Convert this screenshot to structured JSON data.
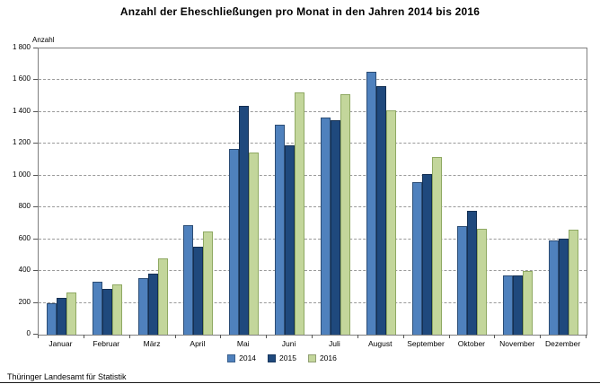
{
  "chart_data": {
    "type": "bar",
    "title": "Anzahl der Eheschließungen pro Monat in den Jahren 2014 bis 2016",
    "ylabel": "Anzahl",
    "xlabel": "",
    "ylim": [
      0,
      1800
    ],
    "grid": "horizontal-dashed",
    "legend_position": "bottom-center",
    "categories": [
      "Januar",
      "Februar",
      "März",
      "April",
      "Mai",
      "Juni",
      "Juli",
      "August",
      "September",
      "Oktober",
      "November",
      "Dezember"
    ],
    "yticks": [
      {
        "v": 0,
        "label": "0"
      },
      {
        "v": 200,
        "label": "200"
      },
      {
        "v": 400,
        "label": "400"
      },
      {
        "v": 600,
        "label": "600"
      },
      {
        "v": 800,
        "label": "800"
      },
      {
        "v": 1000,
        "label": "1 000"
      },
      {
        "v": 1200,
        "label": "1 200"
      },
      {
        "v": 1400,
        "label": "1 400"
      },
      {
        "v": 1600,
        "label": "1 600"
      },
      {
        "v": 1800,
        "label": "1 800"
      }
    ],
    "series": [
      {
        "name": "2014",
        "fill": "#4F81BD",
        "border": "#2C4D75",
        "values": [
          200,
          335,
          355,
          690,
          1170,
          1320,
          1365,
          1655,
          960,
          685,
          375,
          590
        ]
      },
      {
        "name": "2015",
        "fill": "#1F497D",
        "border": "#142F52",
        "values": [
          230,
          290,
          385,
          555,
          1440,
          1190,
          1350,
          1565,
          1010,
          780,
          375,
          605
        ]
      },
      {
        "name": "2016",
        "fill": "#C3D69B",
        "border": "#8FA963",
        "values": [
          265,
          315,
          480,
          650,
          1145,
          1525,
          1515,
          1410,
          1120,
          665,
          400,
          660
        ]
      }
    ]
  },
  "footer": {
    "source": "Thüringer Landesamt für Statistik"
  },
  "colors": {
    "frame": "#7f7f7f",
    "gridline": "#9a9a9a",
    "background": "#ffffff"
  }
}
